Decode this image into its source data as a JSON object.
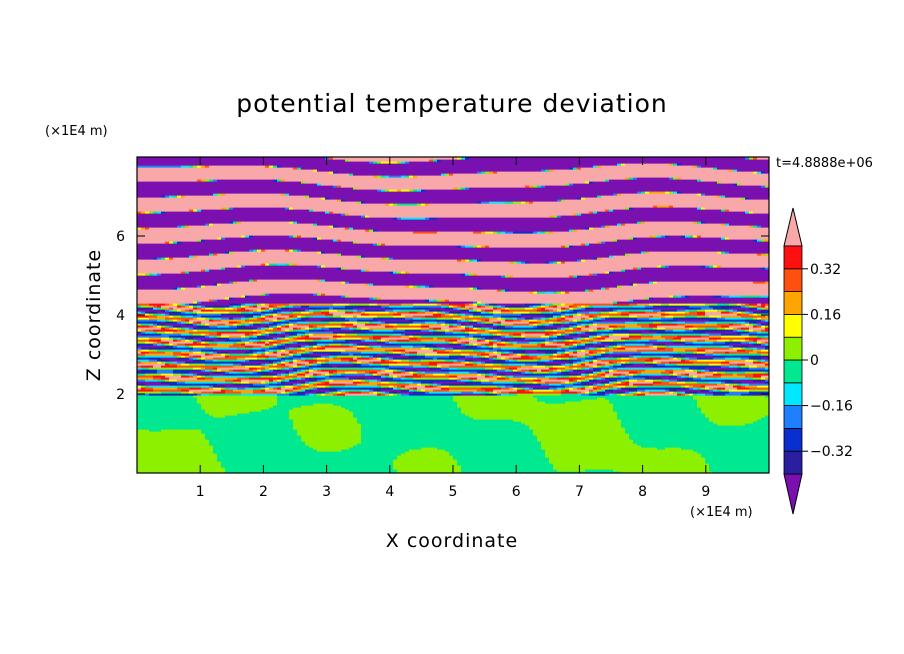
{
  "chart_data": {
    "type": "heatmap",
    "title": "potential temperature deviation",
    "xlabel": "X coordinate",
    "ylabel": "Z coordinate",
    "x_unit": "(×1E4 m)",
    "y_unit": "(×1E4 m)",
    "time_label": "t=4.8888e+06",
    "xlim": [
      0,
      10
    ],
    "ylim": [
      0,
      8
    ],
    "x_ticks": [
      "1",
      "2",
      "3",
      "4",
      "5",
      "6",
      "7",
      "8",
      "9"
    ],
    "y_ticks": [
      "2",
      "4",
      "6"
    ],
    "colorbar": {
      "ticks": [
        "0.32",
        "0.16",
        "0",
        "−0.16",
        "−0.32"
      ],
      "levels": [
        -0.4,
        -0.32,
        -0.24,
        -0.16,
        -0.08,
        0,
        0.08,
        0.16,
        0.24,
        0.32,
        0.4
      ],
      "colors": [
        "#7a10b0",
        "#2a1fa0",
        "#0a2fd0",
        "#1f80ff",
        "#00e8ff",
        "#00e890",
        "#8cf000",
        "#ffff00",
        "#ffa500",
        "#ff5010",
        "#ff1010",
        "#f8a8a8"
      ],
      "extend": "both"
    },
    "field": {
      "lower_layer": {
        "z_range": [
          0,
          2
        ],
        "values": [
          0,
          0.04
        ],
        "colors": [
          "#00e890",
          "#8cf000"
        ]
      },
      "middle_layer": {
        "z_range": [
          2,
          4.3
        ],
        "values": "alternating bands from -0.4 to 0.4"
      },
      "upper_layer": {
        "z_range": [
          4.3,
          8
        ],
        "values": [
          -0.4,
          0.4
        ],
        "colors": [
          "#7a10b0",
          "#f8a8a8"
        ]
      }
    }
  }
}
